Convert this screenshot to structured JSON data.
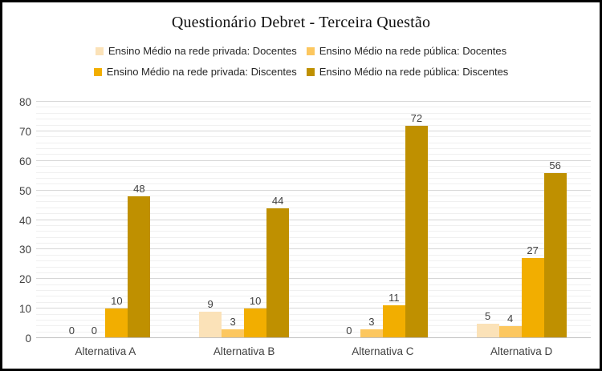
{
  "chart_data": {
    "type": "bar",
    "title": "Questionário Debret - Terceira Questão",
    "categories": [
      "Alternativa A",
      "Alternativa B",
      "Alternativa C",
      "Alternativa D"
    ],
    "series": [
      {
        "name": "Ensino Médio na rede privada: Docentes",
        "color": "#FBE2B8",
        "values": [
          0,
          9,
          0,
          5
        ]
      },
      {
        "name": "Ensino Médio na rede pública: Docentes",
        "color": "#FCC75F",
        "values": [
          0,
          3,
          3,
          4
        ]
      },
      {
        "name": "Ensino Médio na rede privada: Discentes",
        "color": "#F2AE00",
        "values": [
          10,
          10,
          11,
          27
        ]
      },
      {
        "name": "Ensino Médio na rede pública: Discentes",
        "color": "#BF9000",
        "values": [
          48,
          44,
          72,
          56
        ]
      }
    ],
    "xlabel": "",
    "ylabel": "",
    "ylim": [
      0,
      80
    ],
    "y_ticks": [
      0,
      10,
      20,
      30,
      40,
      50,
      60,
      70,
      80
    ],
    "y_major_unit": 10,
    "y_minor_unit": 2,
    "grid": true,
    "value_labels": true,
    "legend_position": "top",
    "legend_rows": [
      [
        0,
        1
      ],
      [
        2,
        3
      ]
    ],
    "colors": {
      "major_gridline": "#d7d7d7",
      "minor_gridline": "#f0f0f0",
      "axis_line": "#c0c0c0",
      "label_text": "#404040"
    }
  }
}
